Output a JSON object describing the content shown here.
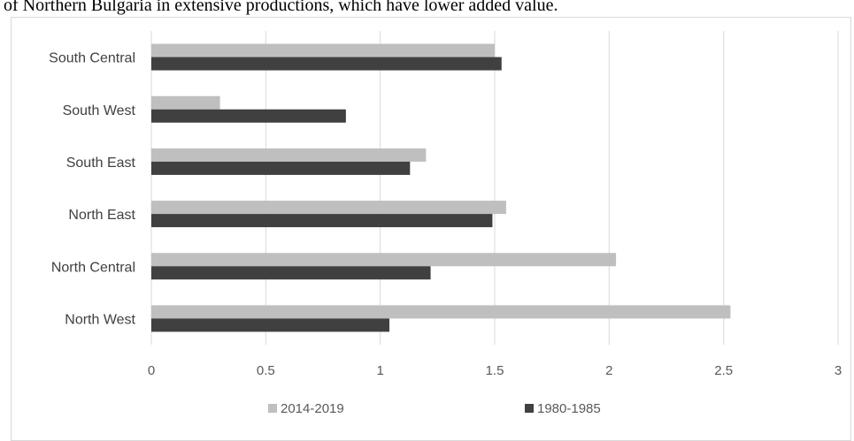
{
  "caption": "of Northern Bulgaria in extensive productions, which have lower added value.",
  "chart_data": {
    "type": "bar",
    "orientation": "horizontal",
    "title": "",
    "xlabel": "",
    "ylabel": "",
    "categories": [
      "South Central",
      "South West",
      "South East",
      "North East",
      "North Central",
      "North West"
    ],
    "series": [
      {
        "name": "2014-2019",
        "color": "#bfbfbf",
        "values": [
          1.5,
          0.3,
          1.2,
          1.55,
          2.03,
          2.53
        ]
      },
      {
        "name": "1980-1985",
        "color": "#404040",
        "values": [
          1.53,
          0.85,
          1.13,
          1.49,
          1.22,
          1.04
        ]
      }
    ],
    "xlim": [
      0,
      3
    ],
    "xticks": [
      "0",
      "0.5",
      "1",
      "1.5",
      "2",
      "2.5",
      "3"
    ],
    "grid": "vertical",
    "legend": "bottom"
  }
}
